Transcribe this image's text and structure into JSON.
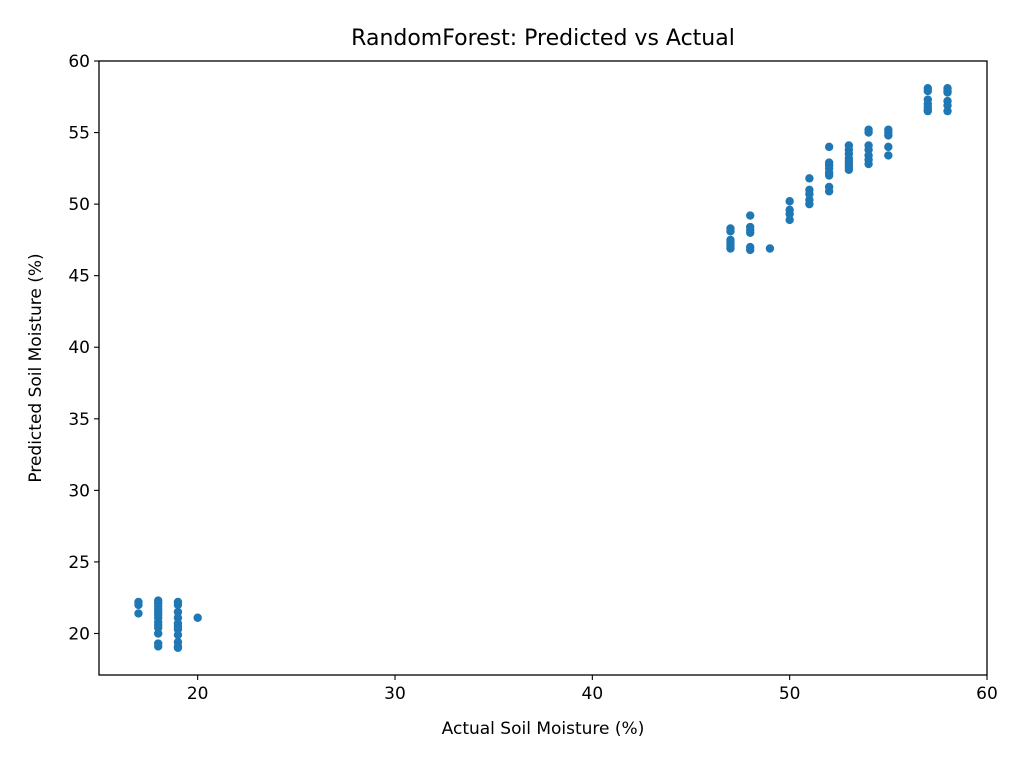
{
  "chart_data": {
    "type": "scatter",
    "title": "RandomForest: Predicted vs Actual",
    "xlabel": "Actual Soil Moisture (%)",
    "ylabel": "Predicted Soil Moisture (%)",
    "xlim": [
      15,
      60
    ],
    "ylim": [
      17.1,
      60
    ],
    "xticks": [
      20,
      30,
      40,
      50,
      60
    ],
    "yticks": [
      20,
      25,
      30,
      35,
      40,
      45,
      50,
      55,
      60
    ],
    "grid": false,
    "marker_color": "#1f77b4",
    "points": [
      [
        17,
        22.2
      ],
      [
        17,
        22.0
      ],
      [
        17,
        21.4
      ],
      [
        18,
        22.3
      ],
      [
        18,
        22.1
      ],
      [
        18,
        21.9
      ],
      [
        18,
        21.7
      ],
      [
        18,
        21.5
      ],
      [
        18,
        21.3
      ],
      [
        18,
        21.1
      ],
      [
        18,
        20.8
      ],
      [
        18,
        20.6
      ],
      [
        18,
        20.4
      ],
      [
        18,
        20.0
      ],
      [
        18,
        19.3
      ],
      [
        18,
        19.1
      ],
      [
        19,
        22.2
      ],
      [
        19,
        22.0
      ],
      [
        19,
        21.5
      ],
      [
        19,
        21.1
      ],
      [
        19,
        20.7
      ],
      [
        19,
        20.5
      ],
      [
        19,
        20.3
      ],
      [
        19,
        19.9
      ],
      [
        19,
        19.4
      ],
      [
        19,
        19.1
      ],
      [
        19,
        19.0
      ],
      [
        20,
        21.1
      ],
      [
        47,
        48.3
      ],
      [
        47,
        48.1
      ],
      [
        47,
        47.5
      ],
      [
        47,
        47.3
      ],
      [
        47,
        47.1
      ],
      [
        47,
        46.9
      ],
      [
        48,
        49.2
      ],
      [
        48,
        48.4
      ],
      [
        48,
        48.2
      ],
      [
        48,
        48.0
      ],
      [
        48,
        47.0
      ],
      [
        48,
        46.8
      ],
      [
        49,
        46.9
      ],
      [
        50,
        50.2
      ],
      [
        50,
        49.6
      ],
      [
        50,
        49.3
      ],
      [
        50,
        48.9
      ],
      [
        51,
        51.8
      ],
      [
        51,
        51.0
      ],
      [
        51,
        50.7
      ],
      [
        51,
        50.3
      ],
      [
        51,
        50.0
      ],
      [
        52,
        54.0
      ],
      [
        52,
        52.9
      ],
      [
        52,
        52.7
      ],
      [
        52,
        52.5
      ],
      [
        52,
        52.2
      ],
      [
        52,
        52.0
      ],
      [
        52,
        51.2
      ],
      [
        52,
        50.9
      ],
      [
        53,
        54.1
      ],
      [
        53,
        53.8
      ],
      [
        53,
        53.5
      ],
      [
        53,
        53.2
      ],
      [
        53,
        53.0
      ],
      [
        53,
        52.8
      ],
      [
        53,
        52.6
      ],
      [
        53,
        52.4
      ],
      [
        54,
        55.2
      ],
      [
        54,
        55.0
      ],
      [
        54,
        54.1
      ],
      [
        54,
        53.8
      ],
      [
        54,
        53.4
      ],
      [
        54,
        53.1
      ],
      [
        54,
        52.8
      ],
      [
        55,
        55.2
      ],
      [
        55,
        55.0
      ],
      [
        55,
        54.8
      ],
      [
        55,
        54.0
      ],
      [
        55,
        53.4
      ],
      [
        57,
        58.1
      ],
      [
        57,
        57.9
      ],
      [
        57,
        57.3
      ],
      [
        57,
        57.0
      ],
      [
        57,
        56.8
      ],
      [
        57,
        56.6
      ],
      [
        57,
        56.5
      ],
      [
        58,
        58.1
      ],
      [
        58,
        57.9
      ],
      [
        58,
        57.8
      ],
      [
        58,
        57.2
      ],
      [
        58,
        56.9
      ],
      [
        58,
        56.5
      ]
    ]
  }
}
